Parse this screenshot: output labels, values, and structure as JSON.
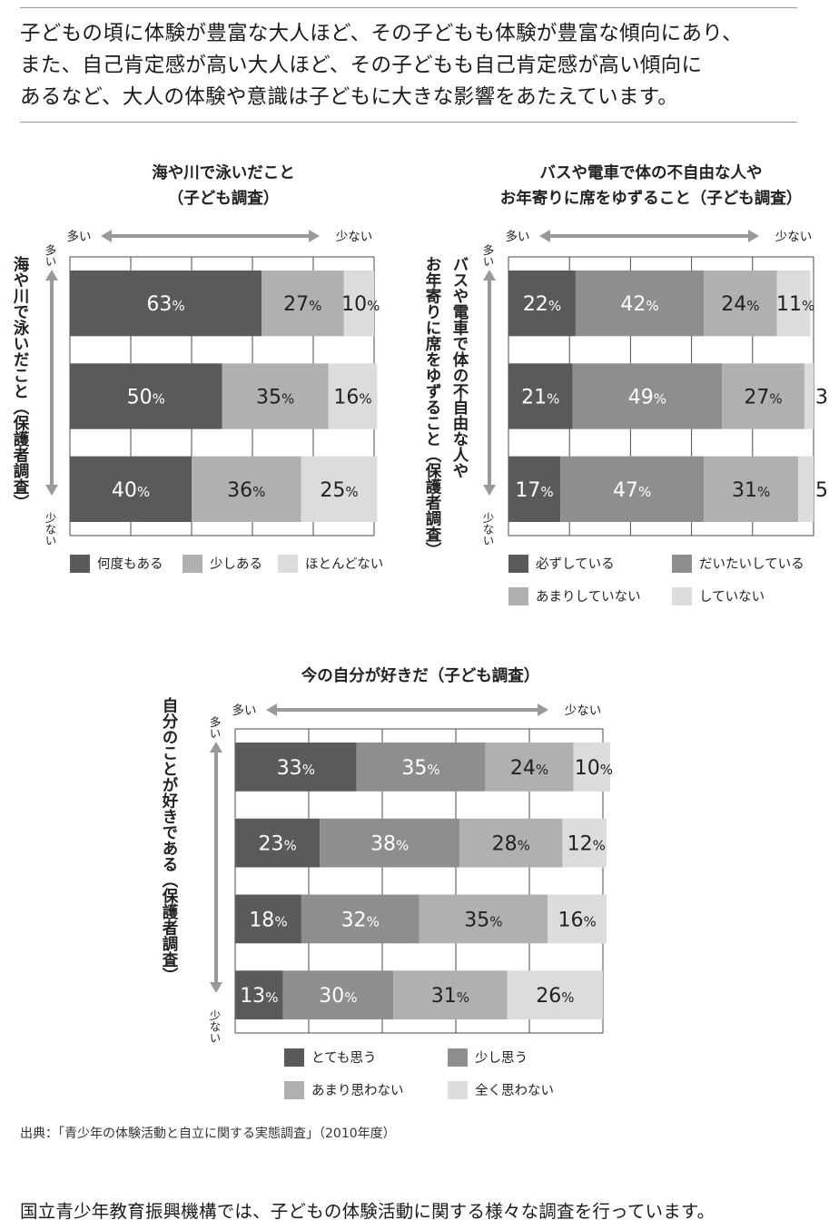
{
  "intro": {
    "lines": [
      "子どもの頃に体験が豊富な大人ほど、その子どもも体験が豊富な傾向にあり、",
      "また、自己肯定感が高い大人ほど、その子どもも自己肯定感が高い傾向に",
      "あるなど、大人の体験や意識は子どもに大きな影響をあたえています。"
    ]
  },
  "source": "出典：「青少年の体験活動と自立に関する実態調査」（2010年度）",
  "footer": "国立青少年教育振興機構では、子どもの体験活動に関する様々な調査を行っています。",
  "colors": {
    "dark": "#5a5a5a",
    "mid": "#8e8e8e",
    "light_mid": "#b0b0b0",
    "light": "#dcdcdc",
    "grid": "#4a4a4a",
    "arrow": "#999999"
  },
  "chart_data": [
    {
      "type": "bar",
      "title": [
        "海や川で泳いだこと",
        "（子ども調査）"
      ],
      "axis_top": {
        "more": "多い",
        "less": "少ない"
      },
      "axis_side": {
        "label": "海や川で泳いだこと（保護者調査）",
        "more": "多い",
        "less": "少ない"
      },
      "unit": "%",
      "series": [
        {
          "name": "何度もある",
          "values": [
            63,
            50,
            40
          ]
        },
        {
          "name": "少しある",
          "values": [
            27,
            35,
            36
          ]
        },
        {
          "name": "ほとんどない",
          "values": [
            10,
            16,
            25
          ]
        }
      ],
      "xlim": [
        0,
        100
      ],
      "grid": true
    },
    {
      "type": "bar",
      "title": [
        "バスや電車で体の不自由な人や",
        "お年寄りに席をゆずること（子ども調査）"
      ],
      "axis_top": {
        "more": "多い",
        "less": "少ない"
      },
      "axis_side": {
        "label": [
          "バスや電車で体の不自由な人や",
          "お年寄りに席をゆずること（保護者調査）"
        ],
        "more": "多い",
        "less": "少ない"
      },
      "unit": "%",
      "series": [
        {
          "name": "必ずしている",
          "values": [
            22,
            21,
            17
          ]
        },
        {
          "name": "だいたいしている",
          "values": [
            42,
            49,
            47
          ]
        },
        {
          "name": "あまりしていない",
          "values": [
            24,
            27,
            31
          ]
        },
        {
          "name": "していない",
          "values": [
            11,
            3,
            5
          ]
        }
      ],
      "xlim": [
        0,
        100
      ],
      "grid": true
    },
    {
      "type": "bar",
      "title": [
        "今の自分が好きだ（子ども調査）"
      ],
      "axis_top": {
        "more": "多い",
        "less": "少ない"
      },
      "axis_side": {
        "label": "自分のことが好きである（保護者調査）",
        "more": "多い",
        "less": "少ない"
      },
      "unit": "%",
      "series": [
        {
          "name": "とても思う",
          "values": [
            33,
            23,
            18,
            13
          ]
        },
        {
          "name": "少し思う",
          "values": [
            35,
            38,
            32,
            30
          ]
        },
        {
          "name": "あまり思わない",
          "values": [
            24,
            28,
            35,
            31
          ]
        },
        {
          "name": "全く思わない",
          "values": [
            10,
            12,
            16,
            26
          ]
        }
      ],
      "xlim": [
        0,
        100
      ],
      "grid": true
    }
  ]
}
